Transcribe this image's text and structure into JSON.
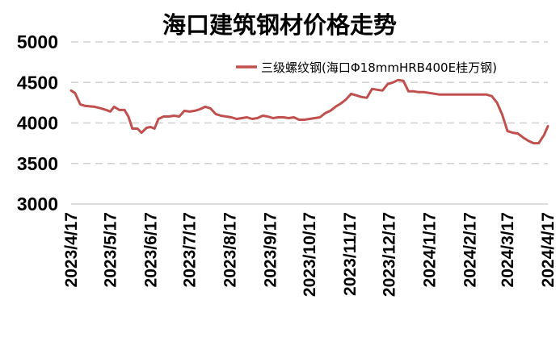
{
  "chart_data": {
    "type": "line",
    "title": "海口建筑钢材价格走势",
    "xlabel": "",
    "ylabel": "",
    "ylim": [
      3000,
      5000
    ],
    "yticks": [
      3000,
      3500,
      4000,
      4500,
      5000
    ],
    "x_range": [
      "2023-04-17",
      "2024-04-17"
    ],
    "xticks": [
      "2023/4/17",
      "2023/5/17",
      "2023/6/17",
      "2023/7/17",
      "2023/8/17",
      "2023/9/17",
      "2023/10/17",
      "2023/11/17",
      "2023/12/17",
      "2024/1/17",
      "2024/2/17",
      "2024/3/17",
      "2024/4/17"
    ],
    "grid": "horizontal-dashed",
    "legend_position": "top-right",
    "series": [
      {
        "name": "三级螺纹钢(海口Φ18mmHRB400E桂万钢)",
        "color": "#c0504d",
        "x": [
          "2023-04-17",
          "2023-04-20",
          "2023-04-24",
          "2023-04-28",
          "2023-05-05",
          "2023-05-10",
          "2023-05-14",
          "2023-05-17",
          "2023-05-20",
          "2023-05-24",
          "2023-05-28",
          "2023-05-31",
          "2023-06-03",
          "2023-06-07",
          "2023-06-10",
          "2023-06-14",
          "2023-06-17",
          "2023-06-20",
          "2023-06-23",
          "2023-06-27",
          "2023-07-01",
          "2023-07-05",
          "2023-07-09",
          "2023-07-13",
          "2023-07-17",
          "2023-07-21",
          "2023-07-25",
          "2023-07-29",
          "2023-08-02",
          "2023-08-06",
          "2023-08-10",
          "2023-08-14",
          "2023-08-18",
          "2023-08-22",
          "2023-08-26",
          "2023-08-30",
          "2023-09-03",
          "2023-09-07",
          "2023-09-11",
          "2023-09-15",
          "2023-09-19",
          "2023-09-23",
          "2023-09-27",
          "2023-10-01",
          "2023-10-05",
          "2023-10-09",
          "2023-10-13",
          "2023-10-17",
          "2023-10-21",
          "2023-10-25",
          "2023-10-29",
          "2023-11-02",
          "2023-11-06",
          "2023-11-10",
          "2023-11-14",
          "2023-11-18",
          "2023-11-22",
          "2023-11-26",
          "2023-11-30",
          "2023-12-04",
          "2023-12-08",
          "2023-12-12",
          "2023-12-16",
          "2023-12-20",
          "2023-12-24",
          "2023-12-28",
          "2024-01-01",
          "2024-01-05",
          "2024-01-09",
          "2024-01-13",
          "2024-01-17",
          "2024-01-21",
          "2024-01-25",
          "2024-01-29",
          "2024-02-02",
          "2024-02-06",
          "2024-02-10",
          "2024-02-14",
          "2024-02-18",
          "2024-02-22",
          "2024-02-26",
          "2024-03-01",
          "2024-03-05",
          "2024-03-09",
          "2024-03-13",
          "2024-03-17",
          "2024-03-21",
          "2024-03-25",
          "2024-03-29",
          "2024-04-02",
          "2024-04-06",
          "2024-04-10",
          "2024-04-14",
          "2024-04-17"
        ],
        "values": [
          4400,
          4370,
          4230,
          4210,
          4200,
          4180,
          4160,
          4140,
          4200,
          4160,
          4160,
          4080,
          3930,
          3930,
          3880,
          3940,
          3950,
          3930,
          4050,
          4080,
          4080,
          4090,
          4080,
          4150,
          4140,
          4150,
          4170,
          4200,
          4180,
          4110,
          4090,
          4080,
          4070,
          4050,
          4060,
          4070,
          4050,
          4060,
          4090,
          4080,
          4060,
          4070,
          4070,
          4060,
          4070,
          4040,
          4040,
          4050,
          4060,
          4070,
          4120,
          4150,
          4200,
          4240,
          4290,
          4360,
          4340,
          4320,
          4310,
          4420,
          4410,
          4400,
          4480,
          4500,
          4530,
          4520,
          4390,
          4390,
          4380,
          4380,
          4370,
          4360,
          4350,
          4350,
          4350,
          4350,
          4350,
          4350,
          4350,
          4350,
          4350,
          4350,
          4330,
          4250,
          4100,
          3900,
          3880,
          3870,
          3820,
          3780,
          3750,
          3750,
          3850,
          3960
        ]
      }
    ]
  }
}
